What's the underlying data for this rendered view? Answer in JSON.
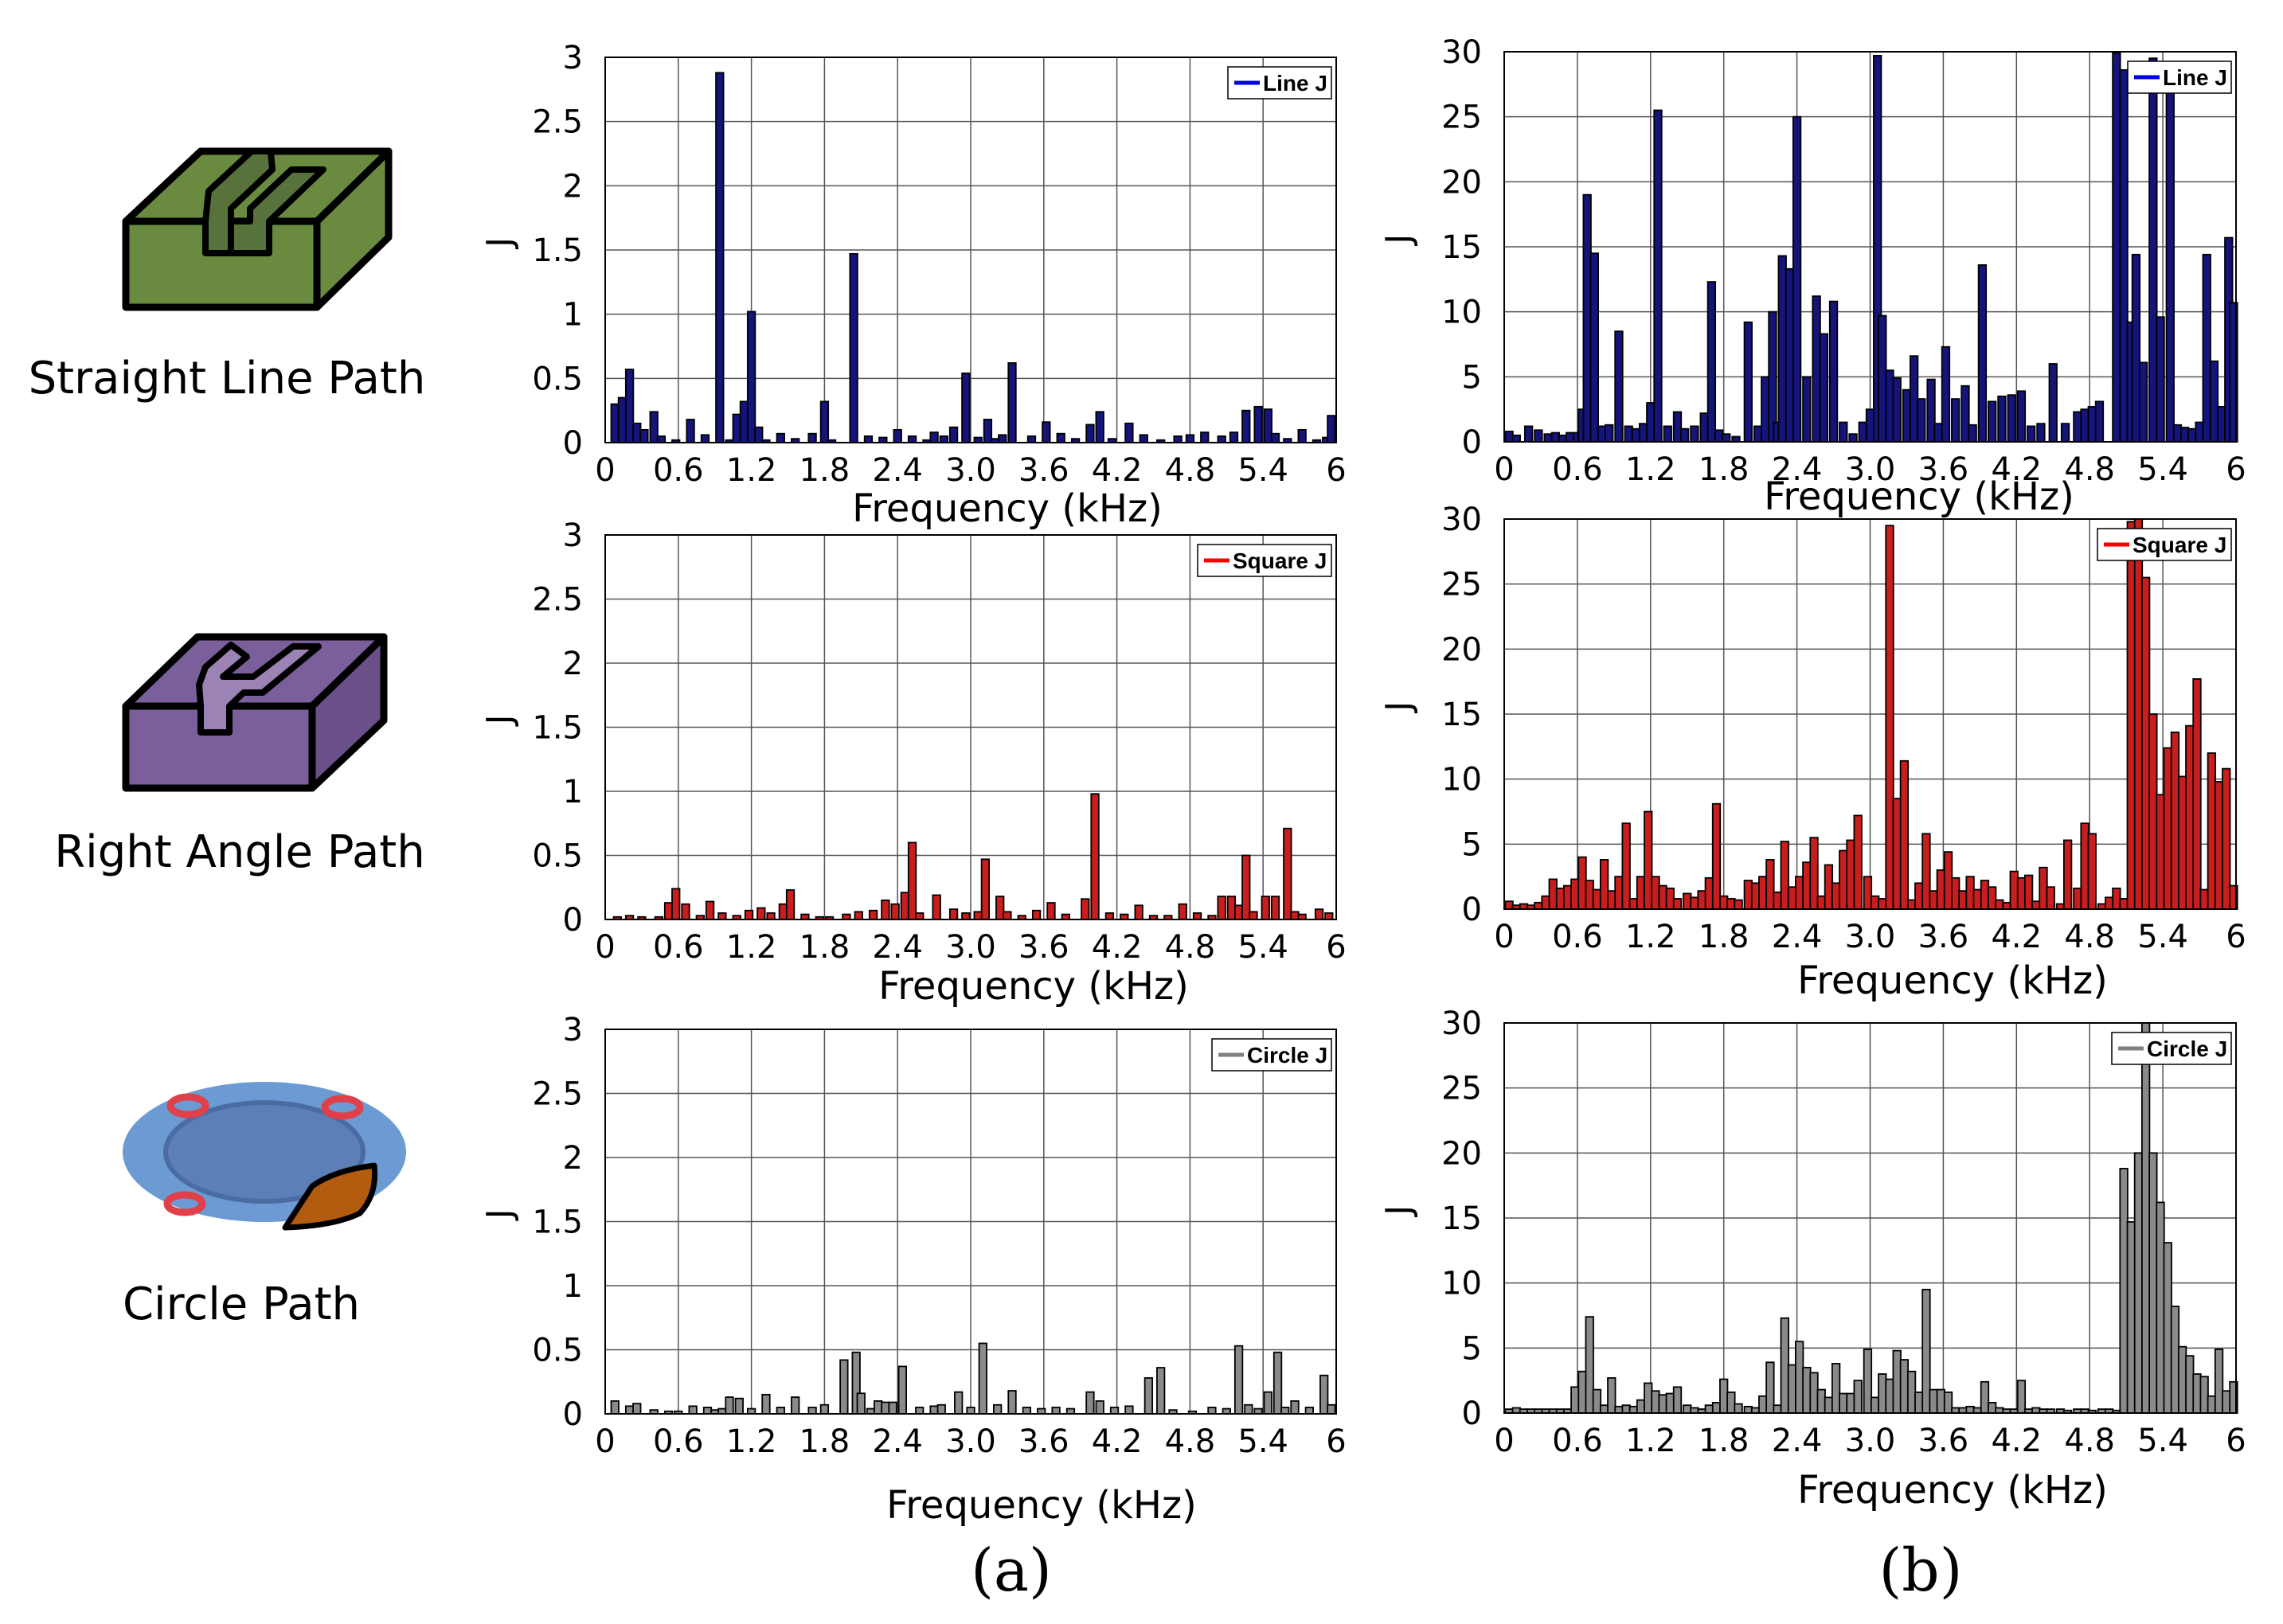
{
  "paths": [
    {
      "key": "line",
      "label": "Straight Line Path"
    },
    {
      "key": "square",
      "label": "Right Angle Path"
    },
    {
      "key": "circle",
      "label": "Circle Path"
    }
  ],
  "panel_labels": {
    "a": "(a)",
    "b": "(b)"
  },
  "colors": {
    "line": "#14147a",
    "square": "#c81e1e",
    "circle": "#8a8a8a",
    "legend_line": "#0000e0",
    "legend_square": "#ff0000",
    "legend_circle": "#808080",
    "block_green": "#6a8b3f",
    "block_purple": "#7b5f9a",
    "disc_blue": "#6b9bd2",
    "blade_brown": "#b35c10"
  },
  "chart_data": [
    {
      "id": "a1",
      "type": "bar",
      "column": "a",
      "title": "",
      "legend": "Line J",
      "series_color": "line",
      "xlabel": "Frequency (kHz)",
      "ylabel": "J",
      "xlim": [
        0,
        6
      ],
      "ylim": [
        0,
        3
      ],
      "xticks": [
        "0",
        "0.6",
        "1.2",
        "1.8",
        "2.4",
        "3.0",
        "3.6",
        "4.2",
        "4.8",
        "5.4",
        "6"
      ],
      "yticks": [
        "0",
        "0.5",
        "1",
        "1.5",
        "2",
        "2.5",
        "3"
      ],
      "x": [
        0.08,
        0.14,
        0.2,
        0.26,
        0.32,
        0.4,
        0.46,
        0.58,
        0.7,
        0.82,
        0.94,
        1.02,
        1.08,
        1.14,
        1.2,
        1.26,
        1.32,
        1.44,
        1.56,
        1.7,
        1.8,
        1.86,
        2.04,
        2.16,
        2.28,
        2.4,
        2.52,
        2.64,
        2.7,
        2.78,
        2.86,
        2.96,
        3.06,
        3.14,
        3.2,
        3.26,
        3.34,
        3.5,
        3.62,
        3.74,
        3.86,
        3.98,
        4.06,
        4.16,
        4.3,
        4.42,
        4.56,
        4.7,
        4.8,
        4.92,
        5.06,
        5.16,
        5.26,
        5.36,
        5.44,
        5.5,
        5.6,
        5.72,
        5.84,
        5.92,
        5.96
      ],
      "values": [
        0.3,
        0.35,
        0.57,
        0.15,
        0.1,
        0.24,
        0.05,
        0.02,
        0.18,
        0.06,
        2.88,
        0.02,
        0.22,
        0.32,
        1.02,
        0.12,
        0.02,
        0.07,
        0.03,
        0.07,
        0.32,
        0.02,
        1.47,
        0.05,
        0.04,
        0.1,
        0.05,
        0.02,
        0.08,
        0.05,
        0.12,
        0.54,
        0.04,
        0.18,
        0.03,
        0.06,
        0.62,
        0.05,
        0.16,
        0.07,
        0.03,
        0.14,
        0.24,
        0.03,
        0.15,
        0.06,
        0.02,
        0.05,
        0.06,
        0.08,
        0.05,
        0.08,
        0.25,
        0.28,
        0.26,
        0.07,
        0.03,
        0.1,
        0.02,
        0.04,
        0.21
      ]
    },
    {
      "id": "a2",
      "type": "bar",
      "column": "a",
      "legend": "Square J",
      "series_color": "square",
      "xlabel": "Frequency (kHz)",
      "ylabel": "J",
      "xlim": [
        0,
        6
      ],
      "ylim": [
        0,
        3
      ],
      "xticks": [
        "0",
        "0.6",
        "1.2",
        "1.8",
        "2.4",
        "3.0",
        "3.6",
        "4.2",
        "4.8",
        "5.4",
        "6"
      ],
      "yticks": [
        "0",
        "0.5",
        "1",
        "1.5",
        "2",
        "2.5",
        "3"
      ],
      "x": [
        0.1,
        0.2,
        0.3,
        0.44,
        0.52,
        0.58,
        0.66,
        0.78,
        0.86,
        0.96,
        1.08,
        1.18,
        1.28,
        1.36,
        1.46,
        1.52,
        1.64,
        1.76,
        1.84,
        1.98,
        2.08,
        2.2,
        2.3,
        2.38,
        2.46,
        2.52,
        2.58,
        2.72,
        2.86,
        2.96,
        3.06,
        3.12,
        3.24,
        3.3,
        3.42,
        3.54,
        3.66,
        3.78,
        3.94,
        4.02,
        4.14,
        4.26,
        4.38,
        4.5,
        4.62,
        4.74,
        4.86,
        4.98,
        5.06,
        5.14,
        5.2,
        5.26,
        5.32,
        5.42,
        5.5,
        5.6,
        5.66,
        5.72,
        5.86,
        5.94
      ],
      "values": [
        0.02,
        0.03,
        0.02,
        0.02,
        0.13,
        0.24,
        0.12,
        0.03,
        0.14,
        0.05,
        0.03,
        0.07,
        0.09,
        0.05,
        0.12,
        0.23,
        0.04,
        0.02,
        0.02,
        0.04,
        0.06,
        0.07,
        0.15,
        0.12,
        0.21,
        0.6,
        0.05,
        0.19,
        0.08,
        0.05,
        0.06,
        0.47,
        0.18,
        0.06,
        0.03,
        0.07,
        0.13,
        0.04,
        0.16,
        0.98,
        0.05,
        0.04,
        0.11,
        0.03,
        0.03,
        0.12,
        0.05,
        0.03,
        0.18,
        0.18,
        0.11,
        0.5,
        0.06,
        0.18,
        0.18,
        0.71,
        0.06,
        0.04,
        0.08,
        0.05
      ]
    },
    {
      "id": "a3",
      "type": "bar",
      "column": "a",
      "legend": "Circle J",
      "series_color": "circle",
      "xlabel": "Frequency (kHz)",
      "ylabel": "J",
      "xlim": [
        0,
        6
      ],
      "ylim": [
        0,
        3
      ],
      "xticks": [
        "0",
        "0.6",
        "1.2",
        "1.8",
        "2.4",
        "3.0",
        "3.6",
        "4.2",
        "4.8",
        "5.4",
        "6"
      ],
      "yticks": [
        "0",
        "0.5",
        "1",
        "1.5",
        "2",
        "2.5",
        "3"
      ],
      "x": [
        0.08,
        0.2,
        0.26,
        0.4,
        0.52,
        0.6,
        0.72,
        0.84,
        0.9,
        0.96,
        1.02,
        1.1,
        1.2,
        1.32,
        1.44,
        1.56,
        1.7,
        1.8,
        1.96,
        2.06,
        2.1,
        2.18,
        2.24,
        2.3,
        2.36,
        2.44,
        2.58,
        2.7,
        2.76,
        2.9,
        3.0,
        3.1,
        3.22,
        3.34,
        3.46,
        3.58,
        3.7,
        3.82,
        3.98,
        4.06,
        4.18,
        4.3,
        4.46,
        4.56,
        4.66,
        4.82,
        4.98,
        5.1,
        5.2,
        5.28,
        5.36,
        5.44,
        5.52,
        5.58,
        5.66,
        5.78,
        5.9,
        5.96
      ],
      "values": [
        0.1,
        0.06,
        0.08,
        0.03,
        0.02,
        0.02,
        0.06,
        0.05,
        0.03,
        0.04,
        0.13,
        0.12,
        0.04,
        0.15,
        0.05,
        0.13,
        0.05,
        0.07,
        0.42,
        0.48,
        0.16,
        0.04,
        0.1,
        0.09,
        0.09,
        0.37,
        0.05,
        0.06,
        0.07,
        0.17,
        0.05,
        0.55,
        0.07,
        0.18,
        0.05,
        0.04,
        0.05,
        0.04,
        0.17,
        0.1,
        0.05,
        0.06,
        0.28,
        0.36,
        0.03,
        0.02,
        0.05,
        0.04,
        0.53,
        0.07,
        0.04,
        0.17,
        0.48,
        0.05,
        0.1,
        0.05,
        0.3,
        0.07
      ]
    },
    {
      "id": "b1",
      "type": "bar",
      "column": "b",
      "legend": "Line J",
      "series_color": "line",
      "xlabel": "Frequency (kHz)",
      "ylabel": "J",
      "xlim": [
        0,
        6
      ],
      "ylim": [
        0,
        30
      ],
      "xticks": [
        "0",
        "0.6",
        "1.2",
        "1.8",
        "2.4",
        "3.0",
        "3.6",
        "4.2",
        "4.8",
        "5.4",
        "6"
      ],
      "yticks": [
        "0",
        "5",
        "10",
        "15",
        "20",
        "25",
        "30"
      ],
      "x": [
        0.04,
        0.1,
        0.2,
        0.28,
        0.36,
        0.42,
        0.48,
        0.54,
        0.6,
        0.64,
        0.68,
        0.74,
        0.8,
        0.86,
        0.94,
        1.02,
        1.08,
        1.14,
        1.2,
        1.26,
        1.34,
        1.42,
        1.48,
        1.56,
        1.64,
        1.7,
        1.76,
        1.82,
        1.9,
        2.0,
        2.08,
        2.14,
        2.2,
        2.24,
        2.28,
        2.34,
        2.4,
        2.48,
        2.56,
        2.62,
        2.7,
        2.78,
        2.86,
        2.94,
        3.0,
        3.06,
        3.1,
        3.16,
        3.22,
        3.3,
        3.36,
        3.42,
        3.5,
        3.56,
        3.62,
        3.7,
        3.78,
        3.84,
        3.92,
        4.0,
        4.08,
        4.16,
        4.24,
        4.32,
        4.4,
        4.5,
        4.6,
        4.7,
        4.76,
        4.82,
        4.88,
        5.02,
        5.08,
        5.14,
        5.18,
        5.24,
        5.32,
        5.38,
        5.46,
        5.52,
        5.58,
        5.64,
        5.7,
        5.76,
        5.82,
        5.88,
        5.94,
        5.98
      ],
      "values": [
        0.8,
        0.5,
        1.2,
        0.9,
        0.6,
        0.7,
        0.5,
        0.7,
        0.7,
        2.5,
        19,
        14.5,
        1.2,
        1.3,
        8.5,
        1.2,
        1,
        1.4,
        3,
        25.5,
        1.2,
        2.3,
        1,
        1.2,
        2.2,
        12.3,
        0.9,
        0.6,
        0.4,
        9.2,
        1.2,
        5,
        10,
        1.5,
        14.3,
        13.3,
        25,
        5,
        11.2,
        8.3,
        10.8,
        1.5,
        0.6,
        1.5,
        2.5,
        29.7,
        9.7,
        5.5,
        4.9,
        4,
        6.6,
        3.3,
        4.8,
        1.4,
        7.3,
        3.3,
        4.3,
        1.3,
        13.6,
        3.1,
        3.5,
        3.6,
        3.9,
        1.2,
        1.4,
        6,
        1.4,
        2.3,
        2.5,
        2.7,
        3.1,
        29.9,
        28.6,
        9.2,
        14.4,
        6.1,
        29.5,
        9.6,
        28.5,
        1.3,
        1.1,
        1,
        1.5,
        14.4,
        6.2,
        2.7,
        15.7,
        10.7
      ]
    },
    {
      "id": "b2",
      "type": "bar",
      "column": "b",
      "legend": "Square J",
      "series_color": "square",
      "xlabel": "Frequency (kHz)",
      "ylabel": "J",
      "xlim": [
        0,
        6
      ],
      "ylim": [
        0,
        30
      ],
      "xticks": [
        "0",
        "0.6",
        "1.2",
        "1.8",
        "2.4",
        "3.0",
        "3.6",
        "4.2",
        "4.8",
        "5.4",
        "6"
      ],
      "yticks": [
        "0",
        "5",
        "10",
        "15",
        "20",
        "25",
        "30"
      ],
      "x": [
        0.04,
        0.1,
        0.16,
        0.22,
        0.28,
        0.34,
        0.4,
        0.46,
        0.52,
        0.58,
        0.64,
        0.7,
        0.76,
        0.82,
        0.88,
        0.94,
        1.0,
        1.06,
        1.12,
        1.18,
        1.24,
        1.3,
        1.36,
        1.42,
        1.5,
        1.56,
        1.62,
        1.68,
        1.74,
        1.8,
        1.86,
        1.92,
        2.0,
        2.06,
        2.12,
        2.18,
        2.24,
        2.3,
        2.36,
        2.42,
        2.48,
        2.54,
        2.6,
        2.66,
        2.72,
        2.78,
        2.84,
        2.9,
        2.98,
        3.04,
        3.1,
        3.16,
        3.22,
        3.28,
        3.34,
        3.4,
        3.46,
        3.52,
        3.58,
        3.64,
        3.7,
        3.76,
        3.82,
        3.88,
        3.94,
        4.0,
        4.06,
        4.12,
        4.18,
        4.24,
        4.3,
        4.36,
        4.42,
        4.48,
        4.56,
        4.62,
        4.7,
        4.76,
        4.82,
        4.9,
        4.96,
        5.02,
        5.08,
        5.14,
        5.2,
        5.26,
        5.32,
        5.38,
        5.44,
        5.5,
        5.56,
        5.62,
        5.68,
        5.74,
        5.8,
        5.86,
        5.92,
        5.98
      ],
      "values": [
        0.6,
        0.3,
        0.4,
        0.3,
        0.5,
        1,
        2.3,
        1.6,
        1.8,
        2.3,
        4,
        2.2,
        1.5,
        3.8,
        1.4,
        2.5,
        6.6,
        0.8,
        2.5,
        7.5,
        2.5,
        1.8,
        1.6,
        0.8,
        1.2,
        0.9,
        1.4,
        2.4,
        8.1,
        1,
        0.8,
        0.7,
        2.2,
        2,
        2.5,
        3.8,
        1.3,
        5.2,
        1.7,
        2.5,
        3.6,
        5.5,
        1,
        3.4,
        2,
        4.5,
        5.3,
        7.2,
        2.5,
        1,
        0.8,
        29.5,
        8.5,
        11.4,
        0.7,
        2,
        5.8,
        1.4,
        3,
        4.4,
        2.4,
        1.4,
        2.5,
        1.5,
        2.2,
        1.7,
        0.7,
        0.5,
        2.9,
        2.4,
        2.6,
        0.6,
        3.2,
        1.7,
        0.4,
        5.3,
        1.6,
        6.6,
        5.8,
        0.4,
        0.9,
        1.6,
        0.8,
        29.8,
        30,
        25.5,
        15,
        8.8,
        12.4,
        13.6,
        10.2,
        14.1,
        17.7,
        1.5,
        12,
        9.8,
        10.8,
        1.8
      ]
    },
    {
      "id": "b3",
      "type": "bar",
      "column": "b",
      "legend": "Circle J",
      "series_color": "circle",
      "xlabel": "Frequency (kHz)",
      "ylabel": "J",
      "xlim": [
        0,
        6
      ],
      "ylim": [
        0,
        30
      ],
      "xticks": [
        "0",
        "0.6",
        "1.2",
        "1.8",
        "2.4",
        "3.0",
        "3.6",
        "4.2",
        "4.8",
        "5.4",
        "6"
      ],
      "yticks": [
        "0",
        "5",
        "10",
        "15",
        "20",
        "25",
        "30"
      ],
      "x": [
        0.04,
        0.1,
        0.16,
        0.22,
        0.28,
        0.34,
        0.4,
        0.46,
        0.52,
        0.58,
        0.64,
        0.7,
        0.76,
        0.82,
        0.88,
        0.94,
        1.0,
        1.06,
        1.12,
        1.18,
        1.24,
        1.3,
        1.36,
        1.42,
        1.5,
        1.56,
        1.62,
        1.68,
        1.74,
        1.8,
        1.86,
        1.92,
        2.0,
        2.06,
        2.12,
        2.18,
        2.24,
        2.3,
        2.36,
        2.42,
        2.48,
        2.54,
        2.6,
        2.66,
        2.72,
        2.78,
        2.84,
        2.9,
        2.98,
        3.04,
        3.1,
        3.16,
        3.22,
        3.28,
        3.34,
        3.4,
        3.46,
        3.52,
        3.58,
        3.64,
        3.7,
        3.76,
        3.82,
        3.88,
        3.94,
        4.0,
        4.06,
        4.12,
        4.18,
        4.24,
        4.3,
        4.36,
        4.42,
        4.48,
        4.56,
        4.62,
        4.7,
        4.76,
        4.82,
        4.9,
        4.96,
        5.02,
        5.08,
        5.14,
        5.2,
        5.26,
        5.32,
        5.38,
        5.44,
        5.5,
        5.56,
        5.62,
        5.68,
        5.74,
        5.8,
        5.86,
        5.92,
        5.98
      ],
      "values": [
        0.3,
        0.4,
        0.3,
        0.3,
        0.3,
        0.3,
        0.3,
        0.3,
        0.3,
        2,
        3.2,
        7.4,
        1.8,
        0.6,
        2.7,
        0.5,
        0.6,
        0.5,
        1,
        2.3,
        1.7,
        1.4,
        1.5,
        2,
        0.6,
        0.4,
        0.3,
        0.6,
        0.8,
        2.6,
        1.6,
        0.7,
        0.5,
        0.4,
        1.3,
        3.9,
        0.6,
        7.3,
        3.7,
        5.5,
        3.5,
        3.1,
        1.8,
        1.2,
        3.8,
        1.5,
        1.5,
        2.5,
        4.9,
        1.2,
        3,
        2.6,
        4.8,
        4.1,
        3.2,
        1.6,
        9.5,
        1.8,
        1.8,
        1.6,
        0.4,
        0.4,
        0.5,
        0.4,
        2.4,
        0.8,
        0.4,
        0.3,
        0.3,
        2.5,
        0.3,
        0.4,
        0.3,
        0.3,
        0.3,
        0.2,
        0.3,
        0.3,
        0.2,
        0.3,
        0.3,
        0.2,
        18.8,
        14.7,
        20,
        30,
        20,
        16.2,
        13.1,
        8.2,
        5.1,
        4.4,
        3,
        2.8,
        1.3,
        4.9,
        1.7,
        2.4
      ]
    }
  ]
}
